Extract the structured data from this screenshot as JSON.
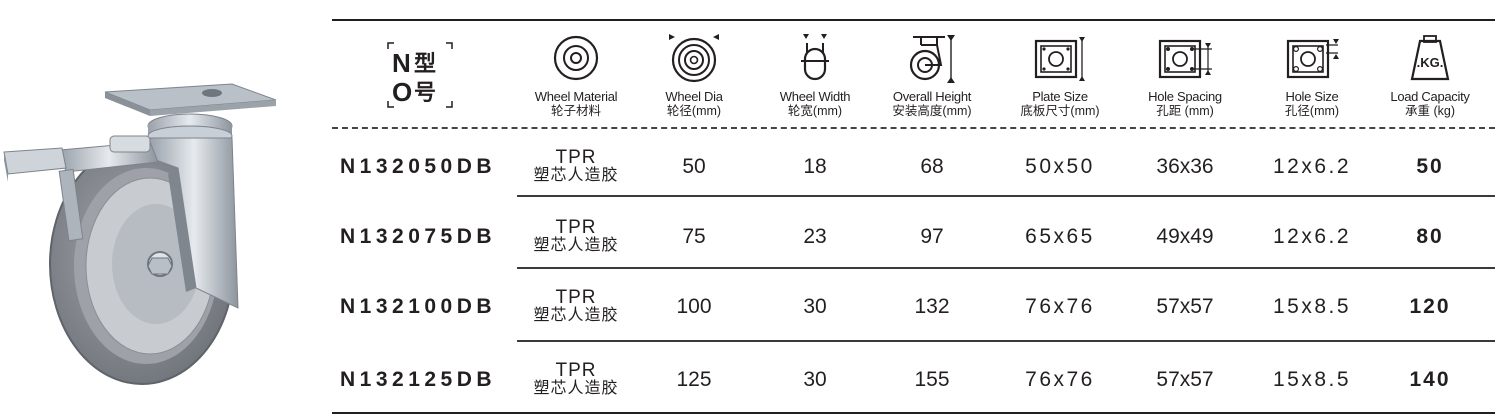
{
  "header": {
    "model": {
      "line1": "N",
      "line1_cn": "型",
      "line2": "O",
      "line2_cn": "号"
    },
    "columns": [
      {
        "key": "wheel_material",
        "en": "Wheel Material",
        "cn": "轮子材料",
        "icon": "wheel-front-icon"
      },
      {
        "key": "wheel_dia",
        "en": "Wheel Dia",
        "cn": "轮径(mm)",
        "icon": "wheel-diameter-icon"
      },
      {
        "key": "wheel_width",
        "en": "Wheel Width",
        "cn": "轮宽(mm)",
        "icon": "wheel-width-icon"
      },
      {
        "key": "overall_height",
        "en": "Overall Height",
        "cn": "安装高度(mm)",
        "icon": "caster-height-icon"
      },
      {
        "key": "plate_size",
        "en": "Plate Size",
        "cn": "底板尺寸(mm)",
        "icon": "plate-size-icon"
      },
      {
        "key": "hole_spacing",
        "en": "Hole Spacing",
        "cn": "孔距 (mm)",
        "icon": "hole-spacing-icon"
      },
      {
        "key": "hole_size",
        "en": "Hole Size",
        "cn": "孔径(mm)",
        "icon": "hole-size-icon"
      },
      {
        "key": "load_capacity",
        "en": "Load Capacity",
        "cn": "承重 (kg)",
        "icon": "weight-icon",
        "icon_text": ".KG."
      }
    ]
  },
  "rows": [
    {
      "model": "N132050DB",
      "material_en": "TPR",
      "material_cn": "塑芯人造胶",
      "wheel_dia": "50",
      "wheel_width": "18",
      "overall_height": "68",
      "plate_size": "50x50",
      "hole_spacing": "36x36",
      "hole_size": "12x6.2",
      "load_capacity": "50"
    },
    {
      "model": "N132075DB",
      "material_en": "TPR",
      "material_cn": "塑芯人造胶",
      "wheel_dia": "75",
      "wheel_width": "23",
      "overall_height": "97",
      "plate_size": "65x65",
      "hole_spacing": "49x49",
      "hole_size": "12x6.2",
      "load_capacity": "80"
    },
    {
      "model": "N132100DB",
      "material_en": "TPR",
      "material_cn": "塑芯人造胶",
      "wheel_dia": "100",
      "wheel_width": "30",
      "overall_height": "132",
      "plate_size": "76x76",
      "hole_spacing": "57x57",
      "hole_size": "15x8.5",
      "load_capacity": "120"
    },
    {
      "model": "N132125DB",
      "material_en": "TPR",
      "material_cn": "塑芯人造胶",
      "wheel_dia": "125",
      "wheel_width": "30",
      "overall_height": "155",
      "plate_size": "76x76",
      "hole_spacing": "57x57",
      "hole_size": "15x8.5",
      "load_capacity": "140"
    }
  ],
  "colors": {
    "text": "#231f20",
    "wheel": "#8c8f96",
    "metal": "#c4cad2"
  }
}
